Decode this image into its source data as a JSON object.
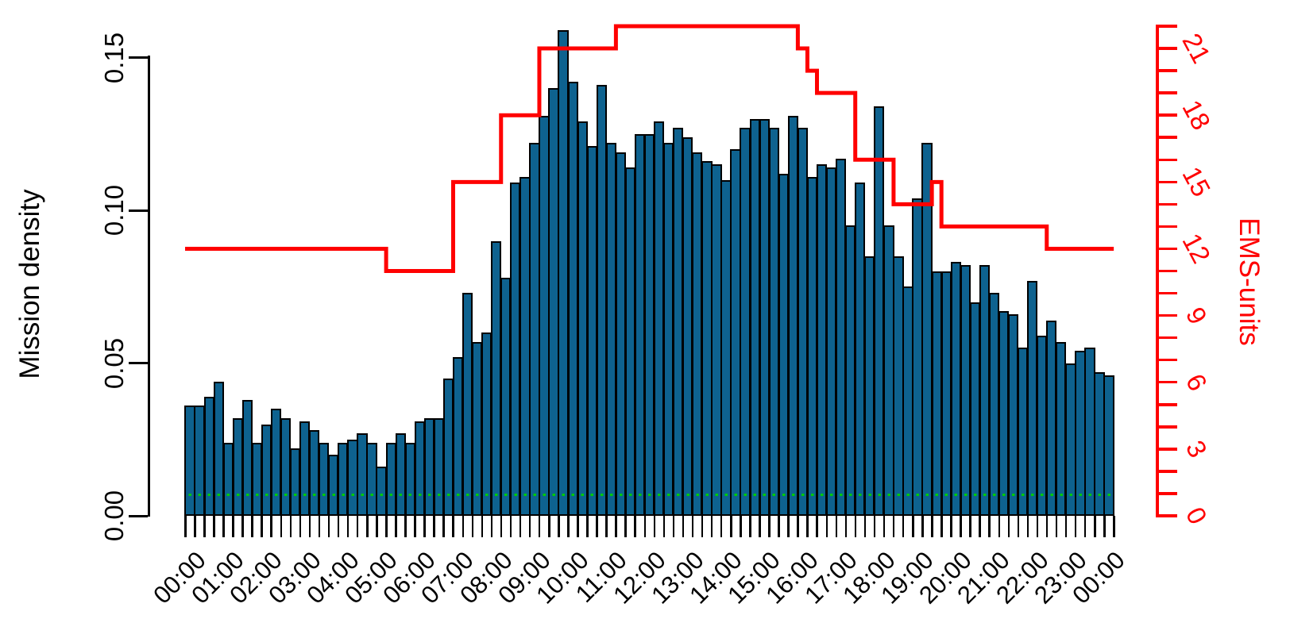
{
  "chart_data": {
    "type": "bar",
    "subtype": "histogram-with-step-line-overlay",
    "title": "",
    "bar_series_name": "Mission density",
    "bar_interval_minutes": 15,
    "bar_start_time": "00:00",
    "values": [
      0.036,
      0.036,
      0.039,
      0.044,
      0.024,
      0.032,
      0.038,
      0.024,
      0.03,
      0.035,
      0.032,
      0.022,
      0.031,
      0.028,
      0.024,
      0.02,
      0.024,
      0.025,
      0.027,
      0.024,
      0.016,
      0.024,
      0.027,
      0.024,
      0.031,
      0.032,
      0.032,
      0.045,
      0.052,
      0.073,
      0.057,
      0.06,
      0.09,
      0.078,
      0.109,
      0.111,
      0.122,
      0.131,
      0.14,
      0.159,
      0.142,
      0.129,
      0.121,
      0.141,
      0.122,
      0.119,
      0.114,
      0.125,
      0.125,
      0.129,
      0.122,
      0.127,
      0.124,
      0.119,
      0.116,
      0.115,
      0.11,
      0.12,
      0.127,
      0.13,
      0.13,
      0.127,
      0.112,
      0.131,
      0.127,
      0.111,
      0.115,
      0.114,
      0.117,
      0.095,
      0.109,
      0.085,
      0.134,
      0.095,
      0.085,
      0.075,
      0.104,
      0.122,
      0.08,
      0.08,
      0.083,
      0.082,
      0.07,
      0.082,
      0.073,
      0.067,
      0.066,
      0.055,
      0.077,
      0.059,
      0.064,
      0.057,
      0.05,
      0.054,
      0.055,
      0.047,
      0.046
    ],
    "ems_step_series_name": "EMS-units",
    "ems_steps": [
      {
        "from_hour": 0.0,
        "to_hour": 5.25,
        "units": 12
      },
      {
        "from_hour": 5.25,
        "to_hour": 7.0,
        "units": 11
      },
      {
        "from_hour": 7.0,
        "to_hour": 8.25,
        "units": 15
      },
      {
        "from_hour": 8.25,
        "to_hour": 9.25,
        "units": 18
      },
      {
        "from_hour": 9.25,
        "to_hour": 11.25,
        "units": 21
      },
      {
        "from_hour": 11.25,
        "to_hour": 16.0,
        "units": 22
      },
      {
        "from_hour": 16.0,
        "to_hour": 16.25,
        "units": 21
      },
      {
        "from_hour": 16.25,
        "to_hour": 16.5,
        "units": 20
      },
      {
        "from_hour": 16.5,
        "to_hour": 17.5,
        "units": 19
      },
      {
        "from_hour": 17.5,
        "to_hour": 18.5,
        "units": 16
      },
      {
        "from_hour": 18.5,
        "to_hour": 19.5,
        "units": 14
      },
      {
        "from_hour": 19.5,
        "to_hour": 19.75,
        "units": 15
      },
      {
        "from_hour": 19.75,
        "to_hour": 22.5,
        "units": 13
      },
      {
        "from_hour": 22.5,
        "to_hour": 24.25,
        "units": 12
      }
    ],
    "y_left": {
      "label": "Mission density",
      "tick_labels": [
        "0.00",
        "0.05",
        "0.10",
        "0.15"
      ],
      "tick_values": [
        0.0,
        0.05,
        0.1,
        0.15
      ],
      "range": [
        0,
        0.15
      ]
    },
    "y_right": {
      "label": "EMS-units",
      "tick_labels": [
        "0",
        "3",
        "6",
        "9",
        "12",
        "15",
        "18",
        "21"
      ],
      "tick_values": [
        0,
        3,
        6,
        9,
        12,
        15,
        18,
        21
      ],
      "minor_tick_every": 1,
      "range": [
        0,
        22
      ]
    },
    "x_axis": {
      "hour_labels": [
        "00:00",
        "01:00",
        "02:00",
        "03:00",
        "04:00",
        "05:00",
        "06:00",
        "07:00",
        "08:00",
        "09:00",
        "10:00",
        "11:00",
        "12:00",
        "13:00",
        "14:00",
        "15:00",
        "16:00",
        "17:00",
        "18:00",
        "19:00",
        "20:00",
        "21:00",
        "22:00",
        "23:00",
        "00:00"
      ],
      "minor_ticks_per_hour": 4
    },
    "reference_line": {
      "value": 0.007,
      "style": "dashed",
      "color": "#00CC00"
    },
    "legend_position": "none",
    "grid": false,
    "colors": {
      "bar_fill": "#0E628F",
      "bar_border": "#000000",
      "step_line": "#FF0000",
      "reference_line": "#00CC00",
      "left_axis_text": "#000000",
      "right_axis_text": "#FF0000",
      "background": "#FFFFFF"
    }
  }
}
